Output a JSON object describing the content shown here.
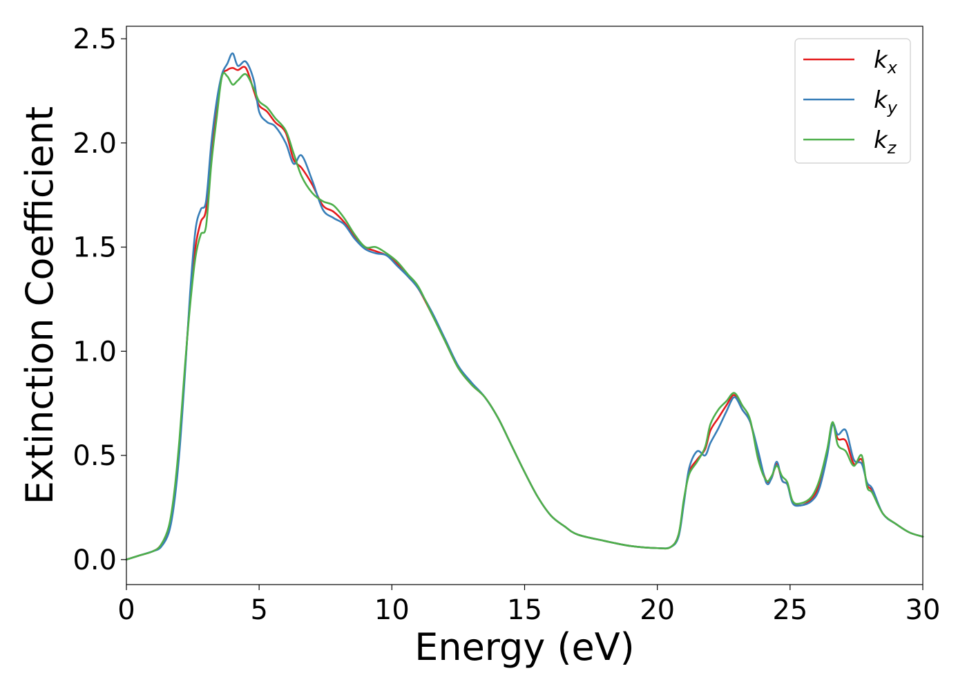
{
  "chart_data": {
    "type": "line",
    "xlabel": "Energy (eV)",
    "ylabel": "Extinction Coefficient",
    "xlim": [
      0,
      30
    ],
    "ylim": [
      -0.12,
      2.56
    ],
    "xticks": [
      0,
      5,
      10,
      15,
      20,
      25,
      30
    ],
    "xtick_labels": [
      "0",
      "5",
      "10",
      "15",
      "20",
      "25",
      "30"
    ],
    "yticks": [
      0.0,
      0.5,
      1.0,
      1.5,
      2.0,
      2.5
    ],
    "ytick_labels": [
      "0.0",
      "0.5",
      "1.0",
      "1.5",
      "2.0",
      "2.5"
    ],
    "grid": false,
    "legend_position": "top-right",
    "series": [
      {
        "name": "k_x",
        "label_main": "k",
        "label_sub": "x",
        "color": "#e41a1c",
        "x": [
          0,
          0.5,
          1,
          1.3,
          1.6,
          1.8,
          2.0,
          2.2,
          2.4,
          2.6,
          2.8,
          3.0,
          3.2,
          3.4,
          3.6,
          3.8,
          4.0,
          4.2,
          4.5,
          4.8,
          5.0,
          5.3,
          5.6,
          6.0,
          6.3,
          6.6,
          7.0,
          7.4,
          7.8,
          8.2,
          8.6,
          9.0,
          9.4,
          9.8,
          10.2,
          10.6,
          11.0,
          11.5,
          12.0,
          12.5,
          13.0,
          13.5,
          14.0,
          14.5,
          15.0,
          15.5,
          16.0,
          16.5,
          17.0,
          18.0,
          19.0,
          20.0,
          20.5,
          20.8,
          21.0,
          21.2,
          21.5,
          21.8,
          22.0,
          22.3,
          22.6,
          22.9,
          23.2,
          23.5,
          23.8,
          24.1,
          24.3,
          24.5,
          24.7,
          24.9,
          25.1,
          25.4,
          25.8,
          26.1,
          26.4,
          26.6,
          26.8,
          27.1,
          27.4,
          27.7,
          27.9,
          28.1,
          28.5,
          29.0,
          29.5,
          30.0
        ],
        "y": [
          0,
          0.02,
          0.04,
          0.07,
          0.15,
          0.3,
          0.55,
          0.9,
          1.25,
          1.5,
          1.62,
          1.68,
          1.95,
          2.15,
          2.32,
          2.35,
          2.36,
          2.35,
          2.36,
          2.25,
          2.18,
          2.15,
          2.1,
          2.05,
          1.92,
          1.88,
          1.8,
          1.7,
          1.67,
          1.62,
          1.55,
          1.5,
          1.48,
          1.46,
          1.42,
          1.36,
          1.3,
          1.18,
          1.05,
          0.92,
          0.84,
          0.78,
          0.68,
          0.55,
          0.42,
          0.3,
          0.21,
          0.16,
          0.12,
          0.09,
          0.065,
          0.055,
          0.06,
          0.12,
          0.28,
          0.42,
          0.48,
          0.53,
          0.62,
          0.68,
          0.74,
          0.79,
          0.72,
          0.66,
          0.5,
          0.38,
          0.39,
          0.46,
          0.38,
          0.36,
          0.28,
          0.26,
          0.29,
          0.36,
          0.52,
          0.65,
          0.58,
          0.57,
          0.46,
          0.48,
          0.36,
          0.33,
          0.22,
          0.17,
          0.13,
          0.11
        ]
      },
      {
        "name": "k_y",
        "label_main": "k",
        "label_sub": "y",
        "color": "#377eb8",
        "x": [
          0,
          0.5,
          1,
          1.3,
          1.6,
          1.8,
          2.0,
          2.2,
          2.4,
          2.6,
          2.8,
          3.0,
          3.2,
          3.4,
          3.6,
          3.8,
          4.0,
          4.2,
          4.5,
          4.8,
          5.0,
          5.3,
          5.6,
          6.0,
          6.3,
          6.6,
          7.0,
          7.4,
          7.8,
          8.2,
          8.6,
          9.0,
          9.4,
          9.8,
          10.2,
          10.6,
          11.0,
          11.5,
          12.0,
          12.5,
          13.0,
          13.5,
          14.0,
          14.5,
          15.0,
          15.5,
          16.0,
          16.5,
          17.0,
          18.0,
          19.0,
          20.0,
          20.5,
          20.8,
          21.0,
          21.2,
          21.5,
          21.8,
          22.0,
          22.3,
          22.6,
          22.9,
          23.2,
          23.5,
          23.8,
          24.1,
          24.3,
          24.5,
          24.7,
          24.9,
          25.1,
          25.4,
          25.8,
          26.1,
          26.4,
          26.6,
          26.8,
          27.1,
          27.4,
          27.7,
          27.9,
          28.1,
          28.5,
          29.0,
          29.5,
          30.0
        ],
        "y": [
          0,
          0.02,
          0.04,
          0.06,
          0.13,
          0.27,
          0.52,
          0.88,
          1.28,
          1.58,
          1.68,
          1.72,
          2.0,
          2.2,
          2.33,
          2.38,
          2.43,
          2.37,
          2.39,
          2.3,
          2.15,
          2.1,
          2.08,
          2.0,
          1.9,
          1.94,
          1.82,
          1.68,
          1.64,
          1.61,
          1.54,
          1.49,
          1.47,
          1.46,
          1.41,
          1.36,
          1.3,
          1.19,
          1.06,
          0.93,
          0.85,
          0.78,
          0.68,
          0.55,
          0.42,
          0.3,
          0.21,
          0.16,
          0.12,
          0.09,
          0.065,
          0.055,
          0.06,
          0.11,
          0.27,
          0.44,
          0.52,
          0.5,
          0.56,
          0.63,
          0.71,
          0.78,
          0.72,
          0.66,
          0.52,
          0.37,
          0.39,
          0.47,
          0.38,
          0.36,
          0.27,
          0.26,
          0.28,
          0.34,
          0.5,
          0.65,
          0.6,
          0.62,
          0.48,
          0.46,
          0.37,
          0.34,
          0.22,
          0.17,
          0.13,
          0.11
        ]
      },
      {
        "name": "k_z",
        "label_main": "k",
        "label_sub": "z",
        "color": "#4daf4a",
        "x": [
          0,
          0.5,
          1,
          1.3,
          1.6,
          1.8,
          2.0,
          2.2,
          2.4,
          2.6,
          2.8,
          3.0,
          3.2,
          3.4,
          3.6,
          3.8,
          4.0,
          4.2,
          4.5,
          4.8,
          5.0,
          5.3,
          5.6,
          6.0,
          6.3,
          6.6,
          7.0,
          7.4,
          7.8,
          8.2,
          8.6,
          9.0,
          9.4,
          9.8,
          10.2,
          10.6,
          11.0,
          11.5,
          12.0,
          12.5,
          13.0,
          13.5,
          14.0,
          14.5,
          15.0,
          15.5,
          16.0,
          16.5,
          17.0,
          18.0,
          19.0,
          20.0,
          20.5,
          20.8,
          21.0,
          21.2,
          21.5,
          21.8,
          22.0,
          22.3,
          22.6,
          22.9,
          23.2,
          23.5,
          23.8,
          24.1,
          24.3,
          24.5,
          24.7,
          24.9,
          25.1,
          25.4,
          25.8,
          26.1,
          26.4,
          26.6,
          26.8,
          27.1,
          27.4,
          27.7,
          27.9,
          28.1,
          28.5,
          29.0,
          29.5,
          30.0
        ],
        "y": [
          0,
          0.02,
          0.04,
          0.07,
          0.16,
          0.32,
          0.58,
          0.92,
          1.22,
          1.45,
          1.56,
          1.6,
          1.9,
          2.12,
          2.32,
          2.32,
          2.28,
          2.3,
          2.33,
          2.26,
          2.2,
          2.17,
          2.12,
          2.06,
          1.95,
          1.84,
          1.76,
          1.72,
          1.7,
          1.64,
          1.56,
          1.5,
          1.5,
          1.47,
          1.43,
          1.37,
          1.31,
          1.18,
          1.05,
          0.92,
          0.84,
          0.78,
          0.68,
          0.55,
          0.42,
          0.3,
          0.21,
          0.16,
          0.12,
          0.09,
          0.065,
          0.055,
          0.06,
          0.12,
          0.29,
          0.41,
          0.47,
          0.54,
          0.65,
          0.72,
          0.76,
          0.8,
          0.74,
          0.67,
          0.48,
          0.38,
          0.4,
          0.45,
          0.4,
          0.37,
          0.28,
          0.27,
          0.3,
          0.38,
          0.53,
          0.66,
          0.55,
          0.52,
          0.45,
          0.5,
          0.35,
          0.32,
          0.22,
          0.17,
          0.13,
          0.11
        ]
      }
    ]
  }
}
